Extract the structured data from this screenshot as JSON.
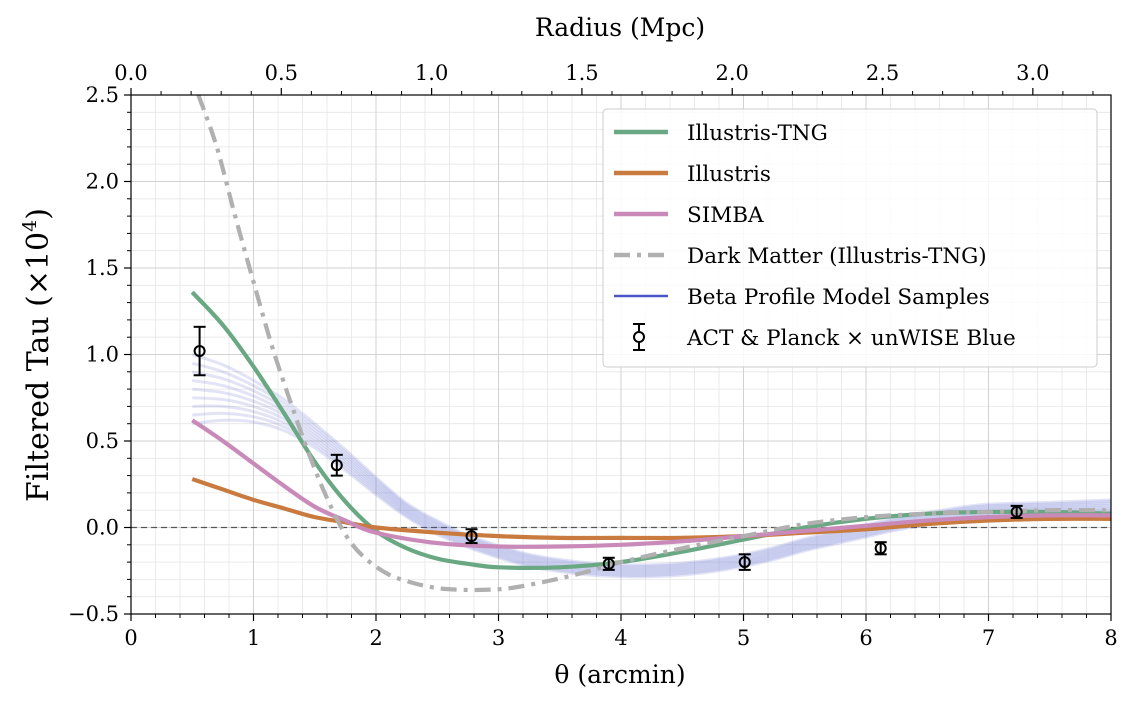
{
  "chart_data": {
    "type": "line",
    "title": "",
    "xlabel": "θ (arcmin)",
    "ylabel": "Filtered Tau (×10⁴)",
    "ylabel_main": "Filtered Tau (",
    "ylabel_times": "×10",
    "ylabel_exp": "4",
    "ylabel_close": ")",
    "x2label": "Radius (Mpc)",
    "xlim": [
      0,
      8
    ],
    "ylim": [
      -0.5,
      2.5
    ],
    "x2lim": [
      0,
      3.26
    ],
    "xticks": [
      "0",
      "1",
      "2",
      "3",
      "4",
      "5",
      "6",
      "7",
      "8"
    ],
    "xtick_values": [
      0,
      1,
      2,
      3,
      4,
      5,
      6,
      7,
      8
    ],
    "yticks": [
      "−0.5",
      "0.0",
      "0.5",
      "1.0",
      "1.5",
      "2.0",
      "2.5"
    ],
    "ytick_values": [
      -0.5,
      0.0,
      0.5,
      1.0,
      1.5,
      2.0,
      2.5
    ],
    "x2ticks": [
      "0.0",
      "0.5",
      "1.0",
      "1.5",
      "2.0",
      "2.5",
      "3.0"
    ],
    "x2tick_values": [
      0.0,
      0.5,
      1.0,
      1.5,
      2.0,
      2.5,
      3.0
    ],
    "grid": true,
    "legend_position": "top-right",
    "zero_line": true,
    "series": [
      {
        "name": "Illustris-TNG",
        "color": "#69a882",
        "style": "solid",
        "x": [
          0.5,
          0.75,
          1.0,
          1.25,
          1.5,
          1.75,
          2.0,
          2.25,
          2.5,
          2.75,
          3.0,
          3.5,
          4.0,
          4.5,
          5.0,
          5.5,
          6.0,
          6.5,
          7.0,
          7.5,
          8.0
        ],
        "y": [
          1.36,
          1.17,
          0.93,
          0.66,
          0.38,
          0.15,
          -0.02,
          -0.12,
          -0.18,
          -0.21,
          -0.23,
          -0.23,
          -0.2,
          -0.14,
          -0.07,
          0.0,
          0.05,
          0.08,
          0.09,
          0.09,
          0.08
        ]
      },
      {
        "name": "Illustris",
        "color": "#c97a3e",
        "style": "solid",
        "x": [
          0.5,
          0.75,
          1.0,
          1.25,
          1.5,
          1.75,
          2.0,
          2.5,
          3.0,
          3.5,
          4.0,
          4.5,
          5.0,
          5.5,
          6.0,
          6.5,
          7.0,
          7.5,
          8.0
        ],
        "y": [
          0.28,
          0.22,
          0.16,
          0.11,
          0.06,
          0.03,
          0.0,
          -0.03,
          -0.05,
          -0.06,
          -0.06,
          -0.06,
          -0.05,
          -0.03,
          -0.01,
          0.02,
          0.04,
          0.05,
          0.05
        ]
      },
      {
        "name": "SIMBA",
        "color": "#c98ab9",
        "style": "solid",
        "x": [
          0.5,
          0.75,
          1.0,
          1.25,
          1.5,
          1.75,
          2.0,
          2.5,
          3.0,
          3.5,
          4.0,
          4.5,
          5.0,
          5.5,
          6.0,
          6.5,
          7.0,
          7.5,
          8.0
        ],
        "y": [
          0.62,
          0.5,
          0.37,
          0.24,
          0.12,
          0.04,
          -0.03,
          -0.09,
          -0.11,
          -0.11,
          -0.1,
          -0.08,
          -0.05,
          -0.02,
          0.01,
          0.04,
          0.06,
          0.07,
          0.07
        ]
      },
      {
        "name": "Dark Matter (Illustris-TNG)",
        "color": "#b0b0b0",
        "style": "dashdot",
        "x": [
          0.55,
          0.7,
          0.85,
          1.0,
          1.15,
          1.3,
          1.45,
          1.6,
          1.75,
          1.9,
          2.1,
          2.3,
          2.5,
          2.7,
          2.9,
          3.1,
          3.4,
          3.7,
          4.0,
          4.5,
          5.0,
          5.5,
          6.0,
          6.5,
          7.0,
          7.5,
          8.0
        ],
        "y": [
          2.5,
          2.2,
          1.8,
          1.42,
          1.05,
          0.73,
          0.43,
          0.17,
          -0.04,
          -0.17,
          -0.27,
          -0.32,
          -0.35,
          -0.36,
          -0.36,
          -0.35,
          -0.31,
          -0.26,
          -0.2,
          -0.12,
          -0.05,
          0.02,
          0.06,
          0.08,
          0.09,
          0.1,
          0.1
        ]
      },
      {
        "name": "Beta Profile Model Samples",
        "color": "#4a56c8",
        "style": "band",
        "x": [
          0.5,
          0.75,
          1.0,
          1.25,
          1.5,
          1.75,
          2.0,
          2.25,
          2.5,
          2.75,
          3.0,
          3.25,
          3.5,
          3.75,
          4.0,
          4.25,
          4.5,
          4.75,
          5.0,
          5.25,
          5.5,
          5.75,
          6.0,
          6.25,
          6.5,
          6.75,
          7.0,
          7.5,
          8.0
        ],
        "y": [
          0.8,
          0.78,
          0.73,
          0.65,
          0.53,
          0.39,
          0.24,
          0.1,
          0.0,
          -0.08,
          -0.14,
          -0.19,
          -0.22,
          -0.24,
          -0.25,
          -0.25,
          -0.24,
          -0.22,
          -0.19,
          -0.15,
          -0.1,
          -0.06,
          -0.02,
          0.02,
          0.05,
          0.08,
          0.1,
          0.11,
          0.12
        ],
        "spread": [
          0.2,
          0.16,
          0.12,
          0.09,
          0.07,
          0.06,
          0.05,
          0.04,
          0.04,
          0.035,
          0.035,
          0.035,
          0.035,
          0.035,
          0.035,
          0.035,
          0.035,
          0.035,
          0.035,
          0.035,
          0.035,
          0.035,
          0.035,
          0.035,
          0.035,
          0.035,
          0.035,
          0.035,
          0.04
        ]
      },
      {
        "name": "ACT & Planck × unWISE Blue",
        "color": "#000000",
        "style": "errorbar",
        "x": [
          0.56,
          1.68,
          2.78,
          3.9,
          5.01,
          6.12,
          7.23
        ],
        "y": [
          1.02,
          0.36,
          -0.05,
          -0.21,
          -0.2,
          -0.12,
          0.09
        ],
        "yerr": [
          0.14,
          0.06,
          0.04,
          0.035,
          0.045,
          0.035,
          0.035
        ]
      }
    ]
  }
}
